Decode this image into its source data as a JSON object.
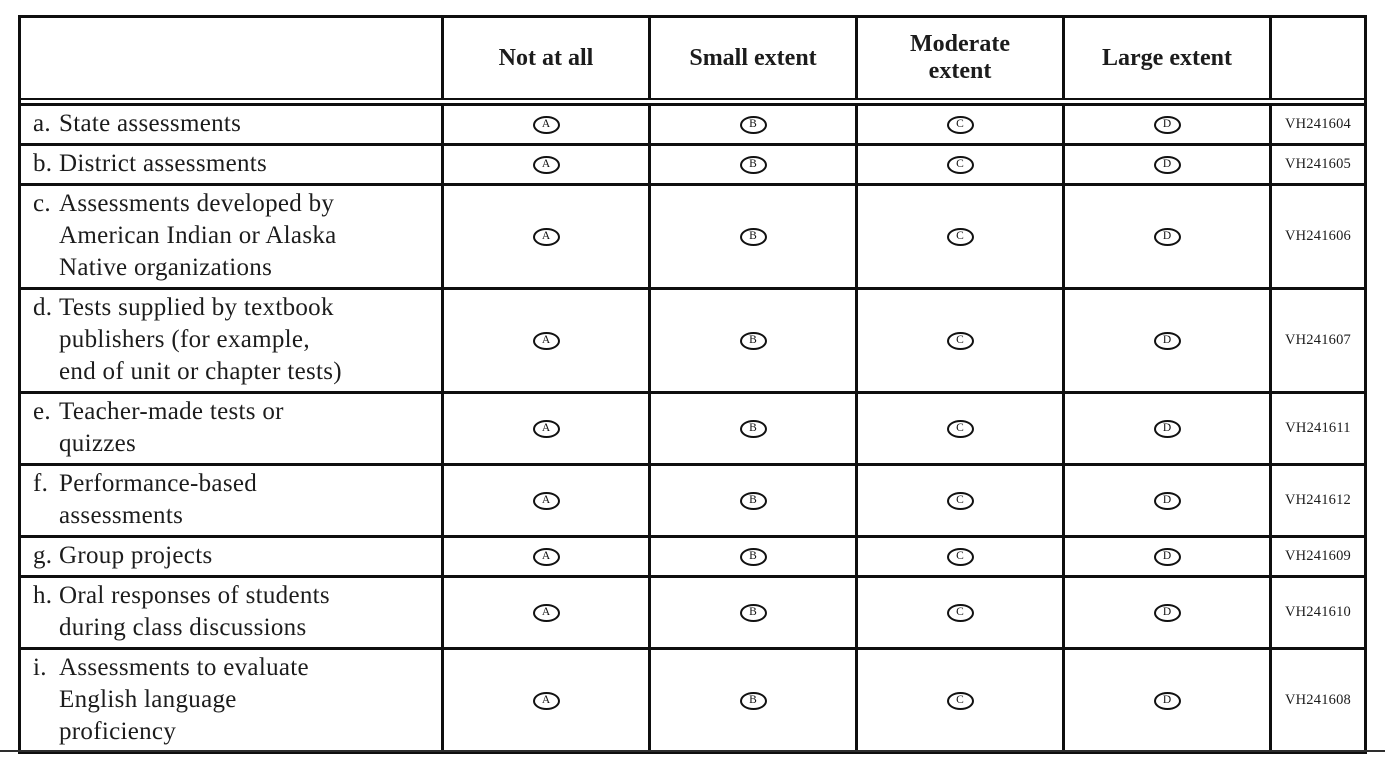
{
  "table": {
    "header": {
      "row_label_header": "",
      "options": [
        "Not at all",
        "Small extent",
        "Moderate\nextent",
        "Large extent"
      ],
      "code_header": ""
    },
    "option_letters": [
      "A",
      "B",
      "C",
      "D"
    ],
    "rows": [
      {
        "prefix": "a.",
        "label": "State assessments",
        "code": "VH241604"
      },
      {
        "prefix": "b.",
        "label": "District assessments",
        "code": "VH241605"
      },
      {
        "prefix": "c.",
        "label": "Assessments developed by\nAmerican Indian or Alaska\nNative organizations",
        "code": "VH241606"
      },
      {
        "prefix": "d.",
        "label": "Tests supplied by textbook\npublishers (for example,\nend of unit or chapter tests)",
        "code": "VH241607"
      },
      {
        "prefix": "e.",
        "label": "Teacher-made tests or\nquizzes",
        "code": "VH241611"
      },
      {
        "prefix": "f.",
        "label": "Performance-based\nassessments",
        "code": "VH241612"
      },
      {
        "prefix": "g.",
        "label": "Group projects",
        "code": "VH241609"
      },
      {
        "prefix": "h.",
        "label": "Oral responses of students\nduring class discussions",
        "code": "VH241610"
      },
      {
        "prefix": "i.",
        "label": "Assessments to evaluate\nEnglish language\nproficiency",
        "code": "VH241608"
      }
    ],
    "colors": {
      "border": "#0f0f0f",
      "text": "#1c1c1c"
    }
  }
}
